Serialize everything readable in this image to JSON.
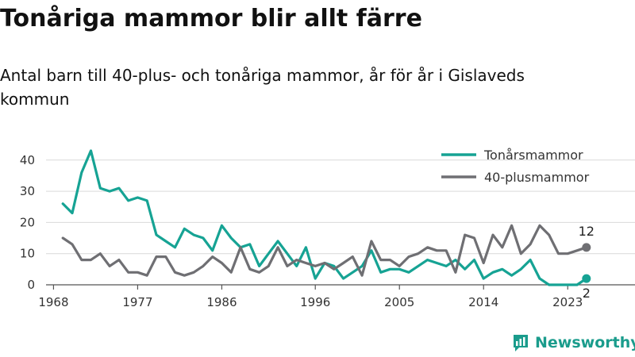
{
  "title": "Tonåriga mammor blir allt färre",
  "subtitle": "Antal barn till 40-plus- och tonåriga mammor, år för år i Gislaveds kommun",
  "logo_text": "Newsworthy",
  "colors": {
    "teal": "#16a394",
    "gray": "#6f6f73",
    "grid": "#d9d9d9",
    "axis": "#555555",
    "logo": "#1a9c8c"
  },
  "chart_data": {
    "type": "line",
    "title": "Tonåriga mammor blir allt färre",
    "subtitle": "Antal barn till 40-plus- och tonåriga mammor, år för år i Gislaveds kommun",
    "xlabel": "",
    "ylabel": "",
    "xlim": [
      1967,
      2026
    ],
    "ylim": [
      0,
      43
    ],
    "x_ticks": [
      1968,
      1977,
      1986,
      1996,
      2005,
      2014,
      2023
    ],
    "y_ticks": [
      0,
      10,
      20,
      30,
      40
    ],
    "grid": "horizontal",
    "legend_position": "top-right",
    "x": [
      1969,
      1970,
      1971,
      1972,
      1973,
      1974,
      1975,
      1976,
      1977,
      1978,
      1979,
      1980,
      1981,
      1982,
      1983,
      1984,
      1985,
      1986,
      1987,
      1988,
      1989,
      1990,
      1991,
      1992,
      1993,
      1994,
      1995,
      1996,
      1997,
      1998,
      1999,
      2000,
      2001,
      2002,
      2003,
      2004,
      2005,
      2006,
      2007,
      2008,
      2009,
      2010,
      2011,
      2012,
      2013,
      2014,
      2015,
      2016,
      2017,
      2018,
      2019,
      2020,
      2021,
      2022,
      2023,
      2024,
      2025
    ],
    "series": [
      {
        "name": "Tonårsmammor",
        "color": "#16a394",
        "values": [
          26,
          23,
          36,
          43,
          31,
          30,
          31,
          27,
          28,
          27,
          16,
          14,
          12,
          18,
          16,
          15,
          11,
          19,
          15,
          12,
          13,
          6,
          10,
          14,
          10,
          6,
          12,
          2,
          7,
          6,
          2,
          4,
          6,
          11,
          4,
          5,
          5,
          4,
          6,
          8,
          7,
          6,
          8,
          5,
          8,
          2,
          4,
          5,
          3,
          5,
          8,
          2,
          0,
          0,
          0,
          0,
          2
        ]
      },
      {
        "name": "40-plusmammor",
        "color": "#6f6f73",
        "values": [
          15,
          13,
          8,
          8,
          10,
          6,
          8,
          4,
          4,
          3,
          9,
          9,
          4,
          3,
          4,
          6,
          9,
          7,
          4,
          12,
          5,
          4,
          6,
          12,
          6,
          8,
          7,
          6,
          7,
          5,
          7,
          9,
          3,
          14,
          8,
          8,
          6,
          9,
          10,
          12,
          11,
          11,
          4,
          16,
          15,
          7,
          16,
          12,
          19,
          10,
          13,
          19,
          16,
          10,
          10,
          11,
          12
        ]
      }
    ],
    "end_labels": [
      {
        "series": "40-plusmammor",
        "year": 2025,
        "value": 12,
        "text": "12"
      },
      {
        "series": "Tonårsmammor",
        "year": 2025,
        "value": 2,
        "text": "2"
      }
    ]
  }
}
